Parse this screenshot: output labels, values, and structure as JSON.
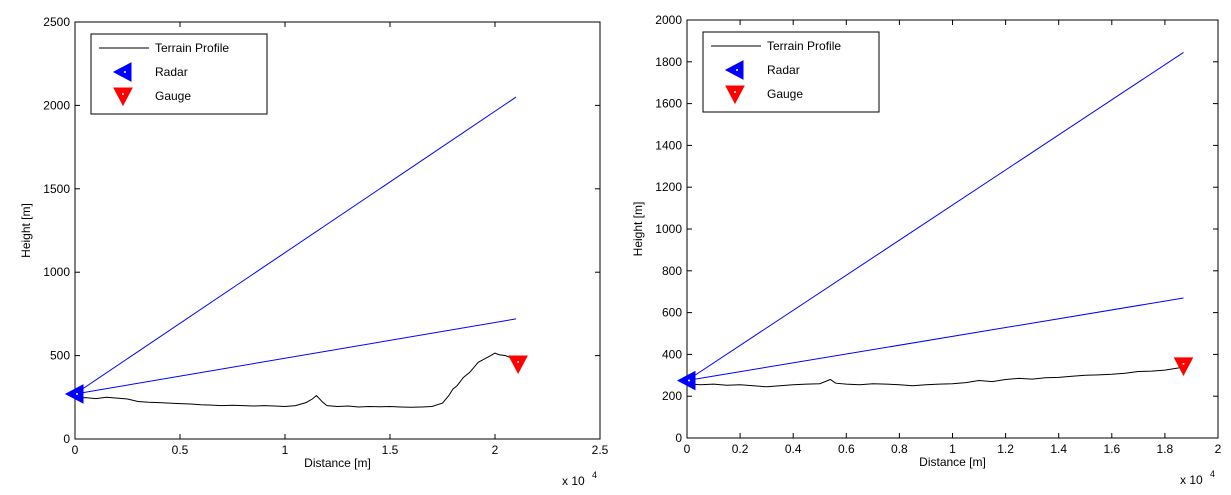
{
  "chart_data": [
    {
      "type": "line",
      "xlabel": "Distance [m]",
      "ylabel": "Height [m]",
      "xlim": [
        0,
        25000
      ],
      "ylim": [
        0,
        2500
      ],
      "x_ticks": [
        0,
        5000,
        10000,
        15000,
        20000,
        25000
      ],
      "x_tick_labels": [
        "0",
        "0.5",
        "1",
        "1.5",
        "2",
        "2.5"
      ],
      "y_ticks": [
        0,
        500,
        1000,
        1500,
        2000,
        2500
      ],
      "y_tick_labels": [
        "0",
        "500",
        "1000",
        "1500",
        "2000",
        "2500"
      ],
      "x_exponent_label": "x 10",
      "x_exponent": "4",
      "legend_position": "top-left",
      "legend": {
        "terrain": "Terrain Profile",
        "radar": "Radar",
        "gauge": "Gauge"
      },
      "series": [
        {
          "name": "Terrain Profile",
          "color": "#000000",
          "x": [
            0,
            500,
            1000,
            1500,
            2000,
            2500,
            3000,
            3500,
            4000,
            4500,
            5000,
            5500,
            6000,
            6500,
            7000,
            7500,
            8000,
            8500,
            9000,
            9500,
            10000,
            10500,
            11000,
            11300,
            11500,
            11800,
            12000,
            12500,
            13000,
            13500,
            14000,
            14500,
            15000,
            15500,
            16000,
            16500,
            17000,
            17500,
            17800,
            18000,
            18200,
            18500,
            18800,
            19000,
            19200,
            19500,
            19800,
            20000,
            20200,
            20500,
            20800,
            21000
          ],
          "y": [
            245,
            248,
            242,
            250,
            245,
            240,
            225,
            220,
            218,
            215,
            212,
            210,
            205,
            203,
            200,
            202,
            200,
            198,
            200,
            198,
            195,
            200,
            218,
            240,
            260,
            220,
            200,
            195,
            198,
            192,
            195,
            193,
            195,
            192,
            190,
            192,
            195,
            215,
            260,
            300,
            320,
            370,
            400,
            430,
            460,
            480,
            500,
            515,
            505,
            500,
            485,
            465
          ]
        },
        {
          "name": "",
          "color": "#0000ff",
          "x": [
            0,
            21000
          ],
          "y": [
            270,
            2050
          ]
        },
        {
          "name": "",
          "color": "#0000ff",
          "x": [
            0,
            21000
          ],
          "y": [
            270,
            720
          ]
        }
      ],
      "markers": [
        {
          "name": "Radar",
          "x": 0,
          "y": 270,
          "color": "#0000ff",
          "shape": "triangle-left"
        },
        {
          "name": "Gauge",
          "x": 21100,
          "y": 450,
          "color": "#ff0000",
          "shape": "triangle-down"
        }
      ]
    },
    {
      "type": "line",
      "xlabel": "Distance [m]",
      "ylabel": "Height [m]",
      "xlim": [
        0,
        20000
      ],
      "ylim": [
        0,
        2000
      ],
      "x_ticks": [
        0,
        2000,
        4000,
        6000,
        8000,
        10000,
        12000,
        14000,
        16000,
        18000,
        20000
      ],
      "x_tick_labels": [
        "0",
        "0.2",
        "0.4",
        "0.6",
        "0.8",
        "1",
        "1.2",
        "1.4",
        "1.6",
        "1.8",
        "2"
      ],
      "y_ticks": [
        0,
        200,
        400,
        600,
        800,
        1000,
        1200,
        1400,
        1600,
        1800,
        2000
      ],
      "y_tick_labels": [
        "0",
        "200",
        "400",
        "600",
        "800",
        "1000",
        "1200",
        "1400",
        "1600",
        "1800",
        "2000"
      ],
      "x_exponent_label": "x 10",
      "x_exponent": "4",
      "legend_position": "top-left",
      "legend": {
        "terrain": "Terrain Profile",
        "radar": "Radar",
        "gauge": "Gauge"
      },
      "series": [
        {
          "name": "Terrain Profile",
          "color": "#000000",
          "x": [
            0,
            500,
            1000,
            1500,
            2000,
            2500,
            3000,
            3500,
            4000,
            4500,
            5000,
            5400,
            5600,
            6000,
            6500,
            7000,
            7500,
            8000,
            8500,
            9000,
            9500,
            10000,
            10500,
            11000,
            11500,
            12000,
            12500,
            13000,
            13500,
            14000,
            14500,
            15000,
            15500,
            16000,
            16500,
            17000,
            17500,
            18000,
            18500,
            18700
          ],
          "y": [
            260,
            255,
            258,
            252,
            255,
            250,
            245,
            250,
            255,
            258,
            260,
            280,
            262,
            258,
            255,
            260,
            258,
            255,
            250,
            255,
            258,
            260,
            265,
            275,
            270,
            280,
            285,
            282,
            288,
            290,
            295,
            300,
            302,
            305,
            310,
            318,
            320,
            325,
            335,
            340
          ]
        },
        {
          "name": "",
          "color": "#0000ff",
          "x": [
            0,
            18700
          ],
          "y": [
            275,
            1845
          ]
        },
        {
          "name": "",
          "color": "#0000ff",
          "x": [
            0,
            18700
          ],
          "y": [
            275,
            670
          ]
        }
      ],
      "markers": [
        {
          "name": "Radar",
          "x": 0,
          "y": 275,
          "color": "#0000ff",
          "shape": "triangle-left"
        },
        {
          "name": "Gauge",
          "x": 18700,
          "y": 345,
          "color": "#ff0000",
          "shape": "triangle-down"
        }
      ]
    }
  ]
}
